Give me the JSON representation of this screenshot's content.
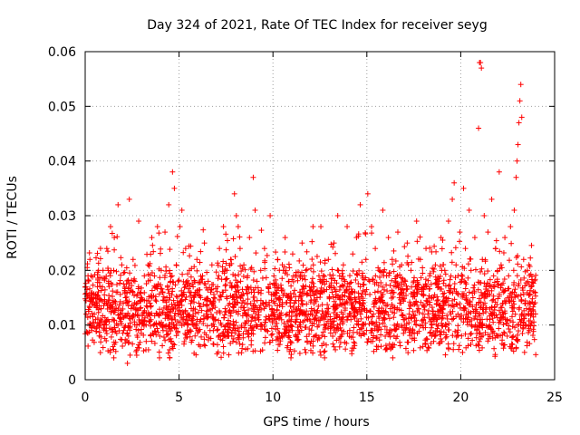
{
  "chart_data": {
    "type": "scatter",
    "title": "Day 324 of 2021, Rate Of TEC Index for receiver seyg",
    "xlabel": "GPS time / hours",
    "ylabel": "ROTI / TECUs",
    "xlim": [
      0,
      25
    ],
    "ylim": [
      0,
      0.06
    ],
    "x_ticks": [
      0,
      5,
      10,
      15,
      20,
      25
    ],
    "x_tick_labels": [
      "0",
      "5",
      "10",
      "15",
      "20",
      "25"
    ],
    "y_ticks": [
      0,
      0.01,
      0.02,
      0.03,
      0.04,
      0.05,
      0.06
    ],
    "y_tick_labels": [
      "0",
      "0.01",
      "0.02",
      "0.03",
      "0.04",
      "0.05",
      "0.06"
    ],
    "grid": true,
    "marker": "+",
    "color": "#ff0000",
    "x_range_of_data": [
      0,
      24
    ],
    "series": [
      {
        "points": [
          [
            0.05,
            0.012
          ],
          [
            0.15,
            0.019
          ],
          [
            0.25,
            0.022
          ],
          [
            0.35,
            0.009
          ],
          [
            0.45,
            0.015
          ],
          [
            0.55,
            0.011
          ],
          [
            0.65,
            0.017
          ],
          [
            0.75,
            0.008
          ],
          [
            0.85,
            0.013
          ],
          [
            0.95,
            0.02
          ],
          [
            1.05,
            0.014
          ],
          [
            1.15,
            0.024
          ],
          [
            1.25,
            0.018
          ],
          [
            1.35,
            0.028
          ],
          [
            1.45,
            0.011
          ],
          [
            1.55,
            0.026
          ],
          [
            1.65,
            0.016
          ],
          [
            1.75,
            0.032
          ],
          [
            1.85,
            0.012
          ],
          [
            1.95,
            0.021
          ],
          [
            2.05,
            0.009
          ],
          [
            2.15,
            0.015
          ],
          [
            2.25,
            0.003
          ],
          [
            2.35,
            0.033
          ],
          [
            2.45,
            0.013
          ],
          [
            2.55,
            0.022
          ],
          [
            2.65,
            0.018
          ],
          [
            2.75,
            0.01
          ],
          [
            2.85,
            0.029
          ],
          [
            2.95,
            0.015
          ],
          [
            3.05,
            0.012
          ],
          [
            3.15,
            0.019
          ],
          [
            3.25,
            0.007
          ],
          [
            3.35,
            0.021
          ],
          [
            3.45,
            0.014
          ],
          [
            3.55,
            0.026
          ],
          [
            3.65,
            0.01
          ],
          [
            3.75,
            0.017
          ],
          [
            3.85,
            0.028
          ],
          [
            3.95,
            0.012
          ],
          [
            4.05,
            0.02
          ],
          [
            4.15,
            0.009
          ],
          [
            4.25,
            0.027
          ],
          [
            4.35,
            0.015
          ],
          [
            4.45,
            0.032
          ],
          [
            4.55,
            0.018
          ],
          [
            4.65,
            0.038
          ],
          [
            4.75,
            0.035
          ],
          [
            4.85,
            0.021
          ],
          [
            4.95,
            0.012
          ],
          [
            5.05,
            0.028
          ],
          [
            5.15,
            0.031
          ],
          [
            5.25,
            0.016
          ],
          [
            5.35,
            0.024
          ],
          [
            5.45,
            0.01
          ],
          [
            5.55,
            0.02
          ],
          [
            5.65,
            0.013
          ],
          [
            5.75,
            0.017
          ],
          [
            5.85,
            0.008
          ],
          [
            5.95,
            0.022
          ],
          [
            6.05,
            0.014
          ],
          [
            6.15,
            0.011
          ],
          [
            6.25,
            0.019
          ],
          [
            6.35,
            0.025
          ],
          [
            6.45,
            0.012
          ],
          [
            6.55,
            0.018
          ],
          [
            6.65,
            0.009
          ],
          [
            6.75,
            0.021
          ],
          [
            6.85,
            0.015
          ],
          [
            6.95,
            0.011
          ],
          [
            7.05,
            0.017
          ],
          [
            7.15,
            0.024
          ],
          [
            7.25,
            0.01
          ],
          [
            7.35,
            0.016
          ],
          [
            7.45,
            0.013
          ],
          [
            7.55,
            0.02
          ],
          [
            7.65,
            0.008
          ],
          [
            7.75,
            0.022
          ],
          [
            7.85,
            0.015
          ],
          [
            7.95,
            0.034
          ],
          [
            8.05,
            0.03
          ],
          [
            8.15,
            0.028
          ],
          [
            8.25,
            0.024
          ],
          [
            8.35,
            0.014
          ],
          [
            8.45,
            0.021
          ],
          [
            8.55,
            0.012
          ],
          [
            8.65,
            0.019
          ],
          [
            8.75,
            0.026
          ],
          [
            8.85,
            0.016
          ],
          [
            8.95,
            0.037
          ],
          [
            9.05,
            0.031
          ],
          [
            9.15,
            0.018
          ],
          [
            9.25,
            0.011
          ],
          [
            9.35,
            0.02
          ],
          [
            9.45,
            0.014
          ],
          [
            9.55,
            0.024
          ],
          [
            9.65,
            0.009
          ],
          [
            9.75,
            0.017
          ],
          [
            9.85,
            0.03
          ],
          [
            9.95,
            0.013
          ],
          [
            10.05,
            0.019
          ],
          [
            10.15,
            0.011
          ],
          [
            10.25,
            0.022
          ],
          [
            10.35,
            0.015
          ],
          [
            10.45,
            0.008
          ],
          [
            10.55,
            0.02
          ],
          [
            10.65,
            0.026
          ],
          [
            10.75,
            0.012
          ],
          [
            10.85,
            0.018
          ],
          [
            10.95,
            0.01
          ],
          [
            11.05,
            0.023
          ],
          [
            11.15,
            0.014
          ],
          [
            11.25,
            0.019
          ],
          [
            11.35,
            0.009
          ],
          [
            11.45,
            0.016
          ],
          [
            11.55,
            0.025
          ],
          [
            11.65,
            0.012
          ],
          [
            11.75,
            0.02
          ],
          [
            11.85,
            0.011
          ],
          [
            11.95,
            0.017
          ],
          [
            12.05,
            0.013
          ],
          [
            12.15,
            0.021
          ],
          [
            12.25,
            0.008
          ],
          [
            12.35,
            0.015
          ],
          [
            12.45,
            0.019
          ],
          [
            12.55,
            0.028
          ],
          [
            12.65,
            0.012
          ],
          [
            12.75,
            0.004
          ],
          [
            12.85,
            0.018
          ],
          [
            12.95,
            0.022
          ],
          [
            13.05,
            0.011
          ],
          [
            13.15,
            0.016
          ],
          [
            13.25,
            0.025
          ],
          [
            13.35,
            0.013
          ],
          [
            13.45,
            0.03
          ],
          [
            13.55,
            0.019
          ],
          [
            13.65,
            0.009
          ],
          [
            13.75,
            0.021
          ],
          [
            13.85,
            0.014
          ],
          [
            13.95,
            0.028
          ],
          [
            14.05,
            0.017
          ],
          [
            14.15,
            0.011
          ],
          [
            14.25,
            0.023
          ],
          [
            14.35,
            0.015
          ],
          [
            14.45,
            0.026
          ],
          [
            14.55,
            0.01
          ],
          [
            14.65,
            0.032
          ],
          [
            14.75,
            0.019
          ],
          [
            14.85,
            0.013
          ],
          [
            14.95,
            0.022
          ],
          [
            15.05,
            0.034
          ],
          [
            15.15,
            0.018
          ],
          [
            15.25,
            0.028
          ],
          [
            15.35,
            0.012
          ],
          [
            15.45,
            0.024
          ],
          [
            15.55,
            0.009
          ],
          [
            15.65,
            0.02
          ],
          [
            15.75,
            0.015
          ],
          [
            15.85,
            0.031
          ],
          [
            15.95,
            0.011
          ],
          [
            16.05,
            0.019
          ],
          [
            16.15,
            0.026
          ],
          [
            16.25,
            0.013
          ],
          [
            16.35,
            0.022
          ],
          [
            16.45,
            0.008
          ],
          [
            16.55,
            0.017
          ],
          [
            16.65,
            0.027
          ],
          [
            16.75,
            0.014
          ],
          [
            16.85,
            0.021
          ],
          [
            16.95,
            0.011
          ],
          [
            17.05,
            0.018
          ],
          [
            17.15,
            0.025
          ],
          [
            17.25,
            0.012
          ],
          [
            17.35,
            0.02
          ],
          [
            17.45,
            0.009
          ],
          [
            17.55,
            0.016
          ],
          [
            17.65,
            0.029
          ],
          [
            17.75,
            0.013
          ],
          [
            17.85,
            0.022
          ],
          [
            17.95,
            0.01
          ],
          [
            18.05,
            0.017
          ],
          [
            18.15,
            0.024
          ],
          [
            18.25,
            0.012
          ],
          [
            18.35,
            0.019
          ],
          [
            18.45,
            0.008
          ],
          [
            18.55,
            0.015
          ],
          [
            18.65,
            0.021
          ],
          [
            18.75,
            0.011
          ],
          [
            18.85,
            0.018
          ],
          [
            18.95,
            0.026
          ],
          [
            19.05,
            0.013
          ],
          [
            19.15,
            0.02
          ],
          [
            19.25,
            0.01
          ],
          [
            19.35,
            0.029
          ],
          [
            19.45,
            0.016
          ],
          [
            19.55,
            0.033
          ],
          [
            19.65,
            0.036
          ],
          [
            19.75,
            0.021
          ],
          [
            19.85,
            0.012
          ],
          [
            19.95,
            0.027
          ],
          [
            20.05,
            0.018
          ],
          [
            20.15,
            0.035
          ],
          [
            20.25,
            0.024
          ],
          [
            20.35,
            0.011
          ],
          [
            20.45,
            0.031
          ],
          [
            20.55,
            0.02
          ],
          [
            20.65,
            0.015
          ],
          [
            20.75,
            0.026
          ],
          [
            20.85,
            0.009
          ],
          [
            20.95,
            0.046
          ],
          [
            21.0,
            0.058
          ],
          [
            21.05,
            0.058
          ],
          [
            21.1,
            0.057
          ],
          [
            21.15,
            0.022
          ],
          [
            21.25,
            0.03
          ],
          [
            21.35,
            0.017
          ],
          [
            21.45,
            0.027
          ],
          [
            21.55,
            0.011
          ],
          [
            21.65,
            0.033
          ],
          [
            21.75,
            0.019
          ],
          [
            21.85,
            0.024
          ],
          [
            21.95,
            0.008
          ],
          [
            22.05,
            0.038
          ],
          [
            22.15,
            0.021
          ],
          [
            22.25,
            0.014
          ],
          [
            22.35,
            0.026
          ],
          [
            22.45,
            0.011
          ],
          [
            22.55,
            0.019
          ],
          [
            22.65,
            0.028
          ],
          [
            22.75,
            0.016
          ],
          [
            22.85,
            0.031
          ],
          [
            22.95,
            0.037
          ],
          [
            23.0,
            0.04
          ],
          [
            23.05,
            0.043
          ],
          [
            23.1,
            0.047
          ],
          [
            23.15,
            0.051
          ],
          [
            23.2,
            0.054
          ],
          [
            23.25,
            0.048
          ],
          [
            23.35,
            0.022
          ],
          [
            23.45,
            0.014
          ],
          [
            23.55,
            0.02
          ],
          [
            23.65,
            0.009
          ],
          [
            23.75,
            0.017
          ],
          [
            23.85,
            0.012
          ],
          [
            23.95,
            0.016
          ]
        ]
      }
    ]
  }
}
